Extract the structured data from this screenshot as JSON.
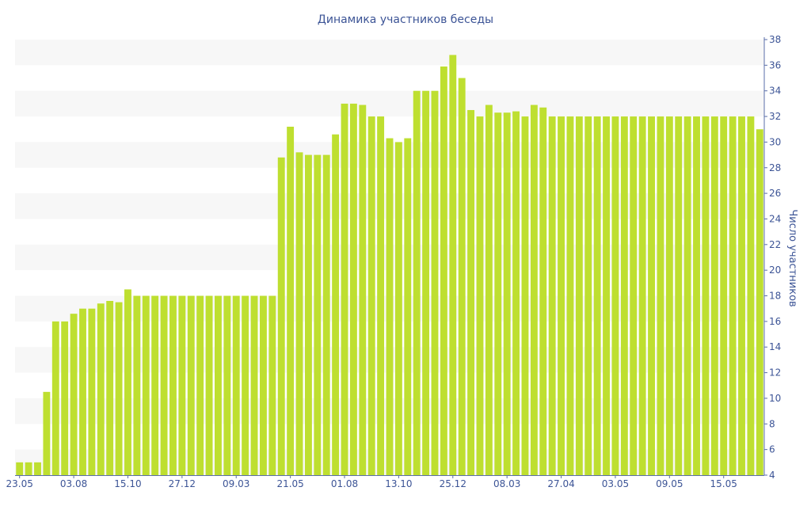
{
  "chart_data": {
    "type": "bar",
    "title": "Динамика участников беседы",
    "ylabel": "Число участников",
    "xlabel": "",
    "ylim": [
      4,
      38
    ],
    "y_ticks": [
      4,
      6,
      8,
      10,
      12,
      14,
      16,
      18,
      20,
      22,
      24,
      26,
      28,
      30,
      32,
      34,
      36,
      38
    ],
    "y_axis_position": "right",
    "x_tick_labels": [
      "23.05",
      "03.08",
      "15.10",
      "27.12",
      "09.03",
      "21.05",
      "01.08",
      "13.10",
      "25.12",
      "08.03",
      "27.04",
      "03.05",
      "09.05",
      "15.05"
    ],
    "x_tick_indices": [
      0,
      6,
      12,
      18,
      24,
      30,
      36,
      42,
      48,
      54,
      60,
      66,
      72,
      78
    ],
    "values": [
      5,
      5,
      5,
      10.5,
      16,
      16,
      16.6,
      17,
      17,
      17.4,
      17.6,
      17.5,
      18.5,
      18,
      18,
      18,
      18,
      18,
      18,
      18,
      18,
      18,
      18,
      18,
      18,
      18,
      18,
      18,
      18,
      28.8,
      31.2,
      29.2,
      29,
      29,
      29,
      30.6,
      33,
      33,
      32.9,
      32,
      32,
      30.3,
      30,
      30.3,
      34,
      34,
      34,
      35.9,
      36.8,
      35,
      32.5,
      32,
      32.9,
      32.3,
      32.3,
      32.4,
      32,
      32.9,
      32.7,
      32,
      32,
      32,
      32,
      32,
      32,
      32,
      32,
      32,
      32,
      32,
      32,
      32,
      32,
      32,
      32,
      32,
      32,
      32,
      32,
      32,
      32,
      32,
      31
    ],
    "grid": "alternating horizontal bands",
    "legend": "none",
    "colors": {
      "bar": "#bedf30",
      "band": "#f7f7f7",
      "text": "#3c5496",
      "axis": "#5a6ea8"
    }
  }
}
